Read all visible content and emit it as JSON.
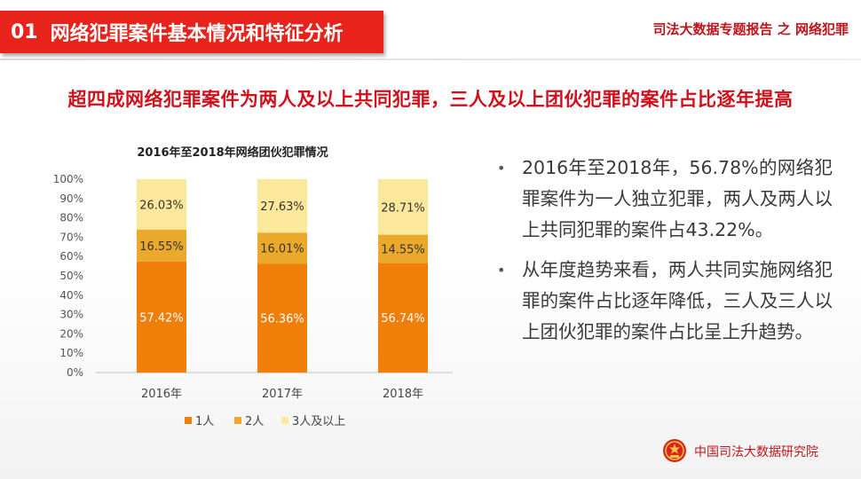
{
  "header": {
    "section_number": "01",
    "section_title": "网络犯罪案件基本情况和特征分析",
    "report_name": "司法大数据专题报告 之 网络犯罪"
  },
  "headline": "超四成网络犯罪案件为两人及以上共同犯罪，三人及以上团伙犯罪的案件占比逐年提高",
  "chart_data": {
    "type": "bar",
    "stacked": true,
    "percent_stacked": true,
    "title": "2016年至2018年网络团伙犯罪情况",
    "categories": [
      "2016年",
      "2017年",
      "2018年"
    ],
    "series": [
      {
        "name": "1人",
        "values": [
          57.42,
          56.36,
          56.74
        ],
        "labels": [
          "57.42%",
          "56.36%",
          "56.74%"
        ],
        "color": "#f07f0a"
      },
      {
        "name": "2人",
        "values": [
          16.55,
          16.01,
          14.55
        ],
        "labels": [
          "16.55%",
          "16.01%",
          "14.55%"
        ],
        "color": "#eaa92a"
      },
      {
        "name": "3人及以上",
        "values": [
          26.03,
          27.63,
          28.71
        ],
        "labels": [
          "26.03%",
          "27.63%",
          "28.71%"
        ],
        "color": "#fbe89a"
      }
    ],
    "y_ticks": [
      "0%",
      "10%",
      "20%",
      "30%",
      "40%",
      "50%",
      "60%",
      "70%",
      "80%",
      "90%",
      "100%"
    ],
    "ylim": [
      0,
      100
    ],
    "grid": false,
    "legend_position": "bottom"
  },
  "bullets": [
    {
      "marker": "•",
      "text": "2016年至2018年，56.78%的网络犯罪案件为一人独立犯罪，两人及两人以上共同犯罪的案件占43.22%。"
    },
    {
      "marker": "•",
      "text": "从年度趋势来看，两人共同实施网络犯罪的案件占比逐年降低，三人及三人以上团伙犯罪的案件占比呈上升趋势。"
    }
  ],
  "footer": {
    "org_name": "中国司法大数据研究院",
    "logo_icon": "national-emblem-icon"
  },
  "colors": {
    "accent_red": "#e8231b",
    "text_red": "#c0141b"
  }
}
